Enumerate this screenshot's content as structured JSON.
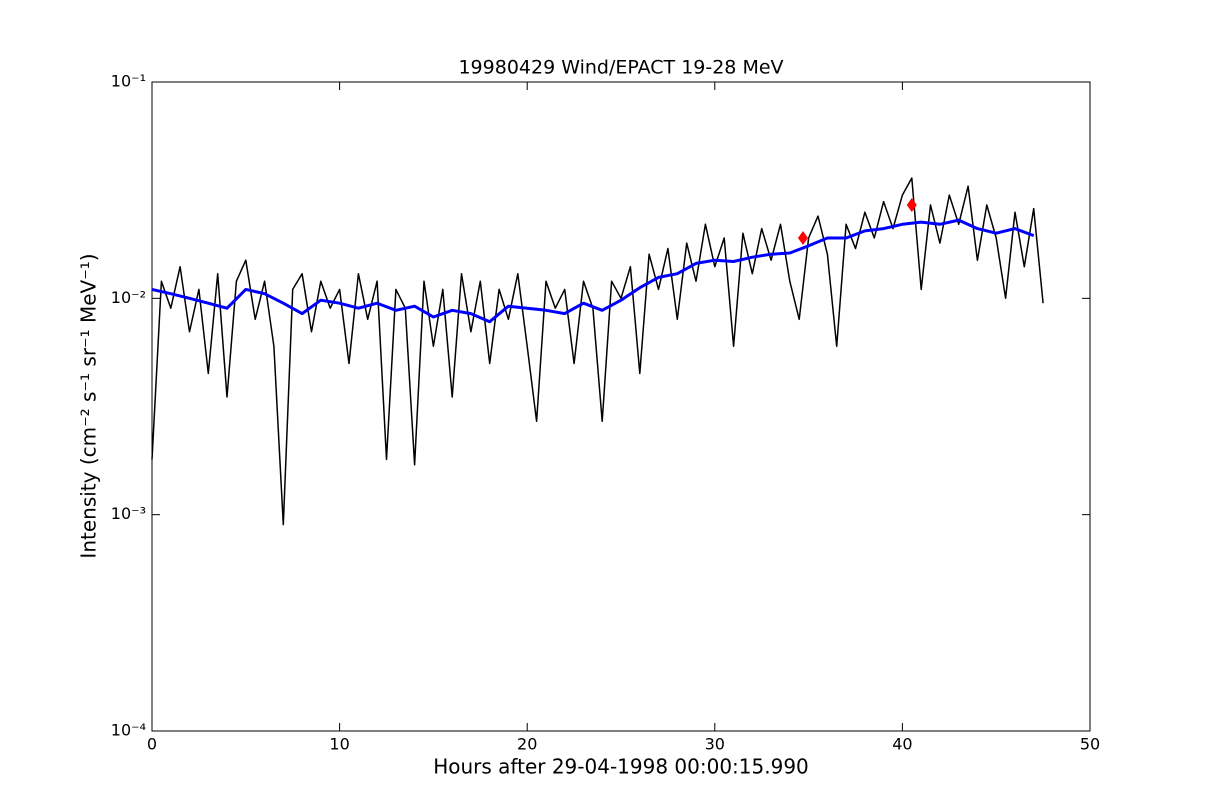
{
  "chart_data": {
    "type": "line",
    "title": "19980429 Wind/EPACT 19-28 MeV",
    "xlabel": "Hours after 29-04-1998 00:00:15.990",
    "ylabel": "Intensity (cm⁻² s⁻¹ sr⁻¹ MeV⁻¹)",
    "log_y": true,
    "xlim": [
      0,
      50
    ],
    "xticks": [
      0,
      10,
      20,
      30,
      40,
      50
    ],
    "ylim": [
      0.0001,
      0.1
    ],
    "yticks": [
      {
        "value": 0.0001,
        "label": "10⁻⁴"
      },
      {
        "value": 0.001,
        "label": "10⁻³"
      },
      {
        "value": 0.01,
        "label": "10⁻²"
      },
      {
        "value": 0.1,
        "label": "10⁻¹"
      }
    ],
    "series": [
      {
        "color": "#000000",
        "width": 1.5,
        "x": [
          0,
          0.5,
          1,
          1.5,
          2,
          2.5,
          3,
          3.5,
          4,
          4.5,
          5,
          5.5,
          6,
          6.5,
          7,
          7.5,
          8,
          8.5,
          9,
          9.5,
          10,
          10.5,
          11,
          11.5,
          12,
          12.5,
          13,
          13.5,
          14,
          14.5,
          15,
          15.5,
          16,
          16.5,
          17,
          17.5,
          18,
          18.5,
          19,
          19.5,
          20,
          20.5,
          21,
          21.5,
          22,
          22.5,
          23,
          23.5,
          24,
          24.5,
          25,
          25.5,
          26,
          26.5,
          27,
          27.5,
          28,
          28.5,
          29,
          29.5,
          30,
          30.5,
          31,
          31.5,
          32,
          32.5,
          33,
          33.5,
          34,
          34.5,
          35,
          35.5,
          36,
          36.5,
          37,
          37.5,
          38,
          38.5,
          39,
          39.5,
          40,
          40.5,
          41,
          41.5,
          42,
          42.5,
          43,
          43.5,
          44,
          44.5,
          45,
          45.5,
          46,
          46.5,
          47,
          47.5
        ],
        "values": [
          0.0018,
          0.012,
          0.009,
          0.014,
          0.007,
          0.011,
          0.0045,
          0.013,
          0.0035,
          0.012,
          0.015,
          0.008,
          0.012,
          0.006,
          0.0009,
          0.011,
          0.013,
          0.007,
          0.012,
          0.009,
          0.011,
          0.005,
          0.013,
          0.008,
          0.012,
          0.0018,
          0.011,
          0.009,
          0.0017,
          0.012,
          0.006,
          0.011,
          0.0035,
          0.013,
          0.007,
          0.012,
          0.005,
          0.011,
          0.008,
          0.013,
          0.006,
          0.0027,
          0.012,
          0.009,
          0.011,
          0.005,
          0.012,
          0.009,
          0.0027,
          0.012,
          0.01,
          0.014,
          0.0045,
          0.016,
          0.011,
          0.017,
          0.008,
          0.018,
          0.012,
          0.022,
          0.014,
          0.019,
          0.006,
          0.02,
          0.013,
          0.021,
          0.015,
          0.022,
          0.012,
          0.008,
          0.019,
          0.024,
          0.016,
          0.006,
          0.022,
          0.017,
          0.025,
          0.019,
          0.028,
          0.021,
          0.03,
          0.036,
          0.011,
          0.027,
          0.018,
          0.03,
          0.022,
          0.033,
          0.015,
          0.027,
          0.019,
          0.01,
          0.025,
          0.014,
          0.026,
          0.0095
        ]
      },
      {
        "color": "#0000ff",
        "width": 3,
        "x": [
          0,
          1,
          2,
          3,
          4,
          5,
          6,
          7,
          8,
          9,
          10,
          11,
          12,
          13,
          14,
          15,
          16,
          17,
          18,
          19,
          20,
          21,
          22,
          23,
          24,
          25,
          26,
          27,
          28,
          29,
          30,
          31,
          32,
          33,
          34,
          35,
          36,
          37,
          38,
          39,
          40,
          41,
          42,
          43,
          44,
          45,
          46,
          47
        ],
        "values": [
          0.011,
          0.0105,
          0.01,
          0.0095,
          0.009,
          0.011,
          0.0105,
          0.0095,
          0.0085,
          0.0098,
          0.0095,
          0.009,
          0.0095,
          0.0088,
          0.0092,
          0.0082,
          0.0088,
          0.0085,
          0.0078,
          0.0092,
          0.009,
          0.0088,
          0.0085,
          0.0095,
          0.0088,
          0.0098,
          0.0112,
          0.0125,
          0.013,
          0.0145,
          0.015,
          0.0148,
          0.0155,
          0.016,
          0.0162,
          0.0175,
          0.019,
          0.019,
          0.0205,
          0.021,
          0.022,
          0.0225,
          0.022,
          0.023,
          0.021,
          0.02,
          0.021,
          0.0195
        ]
      }
    ],
    "markers": {
      "color": "#ff0000",
      "x": [
        34.7,
        40.5
      ],
      "values": [
        0.019,
        0.027
      ]
    }
  }
}
